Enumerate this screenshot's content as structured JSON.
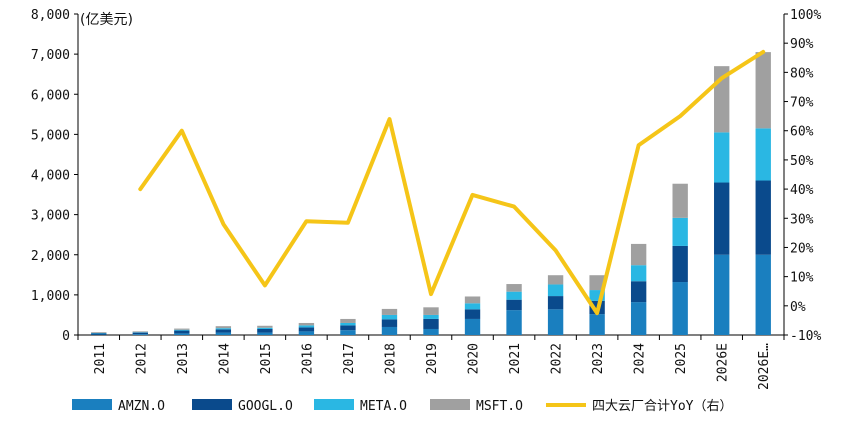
{
  "chart_data": {
    "type": "bar",
    "stacked": true,
    "categories": [
      "2011",
      "2012",
      "2013",
      "2014",
      "2015",
      "2016",
      "2017",
      "2018",
      "2019",
      "2020",
      "2021",
      "2022",
      "2023",
      "2024",
      "2025",
      "2026E",
      "2026E…"
    ],
    "series": [
      {
        "name": "AMZN.O",
        "color": "#1a7fbf",
        "values": [
          10,
          20,
          40,
          60,
          60,
          90,
          120,
          200,
          150,
          400,
          620,
          640,
          520,
          820,
          1320,
          2000,
          2000
        ]
      },
      {
        "name": "GOOGL.O",
        "color": "#0a4a8c",
        "values": [
          30,
          40,
          70,
          80,
          90,
          100,
          120,
          190,
          250,
          240,
          260,
          330,
          330,
          520,
          900,
          1800,
          1850
        ]
      },
      {
        "name": "META.O",
        "color": "#2ab7e3",
        "values": [
          10,
          10,
          20,
          30,
          30,
          50,
          60,
          110,
          100,
          150,
          200,
          290,
          270,
          400,
          700,
          1250,
          1300
        ]
      },
      {
        "name": "MSFT.O",
        "color": "#a0a0a0",
        "values": [
          20,
          20,
          30,
          50,
          50,
          60,
          100,
          150,
          190,
          170,
          190,
          230,
          370,
          530,
          850,
          1650,
          1900
        ]
      }
    ],
    "line_series": {
      "name": "四大云厂合计YoY（右）",
      "color": "#f5c518",
      "axis": "right",
      "values": [
        null,
        40,
        60,
        28,
        7,
        29,
        28.5,
        64,
        4,
        38,
        34,
        19,
        -2.5,
        55,
        65,
        78,
        87
      ]
    },
    "y_left": {
      "unit_label": "(亿美元)",
      "min": 0,
      "max": 8000,
      "ticks": [
        "0",
        "1,000",
        "2,000",
        "3,000",
        "4,000",
        "5,000",
        "6,000",
        "7,000",
        "8,000"
      ]
    },
    "y_right": {
      "min": -10,
      "max": 100,
      "ticks": [
        "-10%",
        "0%",
        "10%",
        "20%",
        "30%",
        "40%",
        "50%",
        "60%",
        "70%",
        "80%",
        "90%",
        "100%"
      ]
    },
    "legend_position": "bottom"
  }
}
